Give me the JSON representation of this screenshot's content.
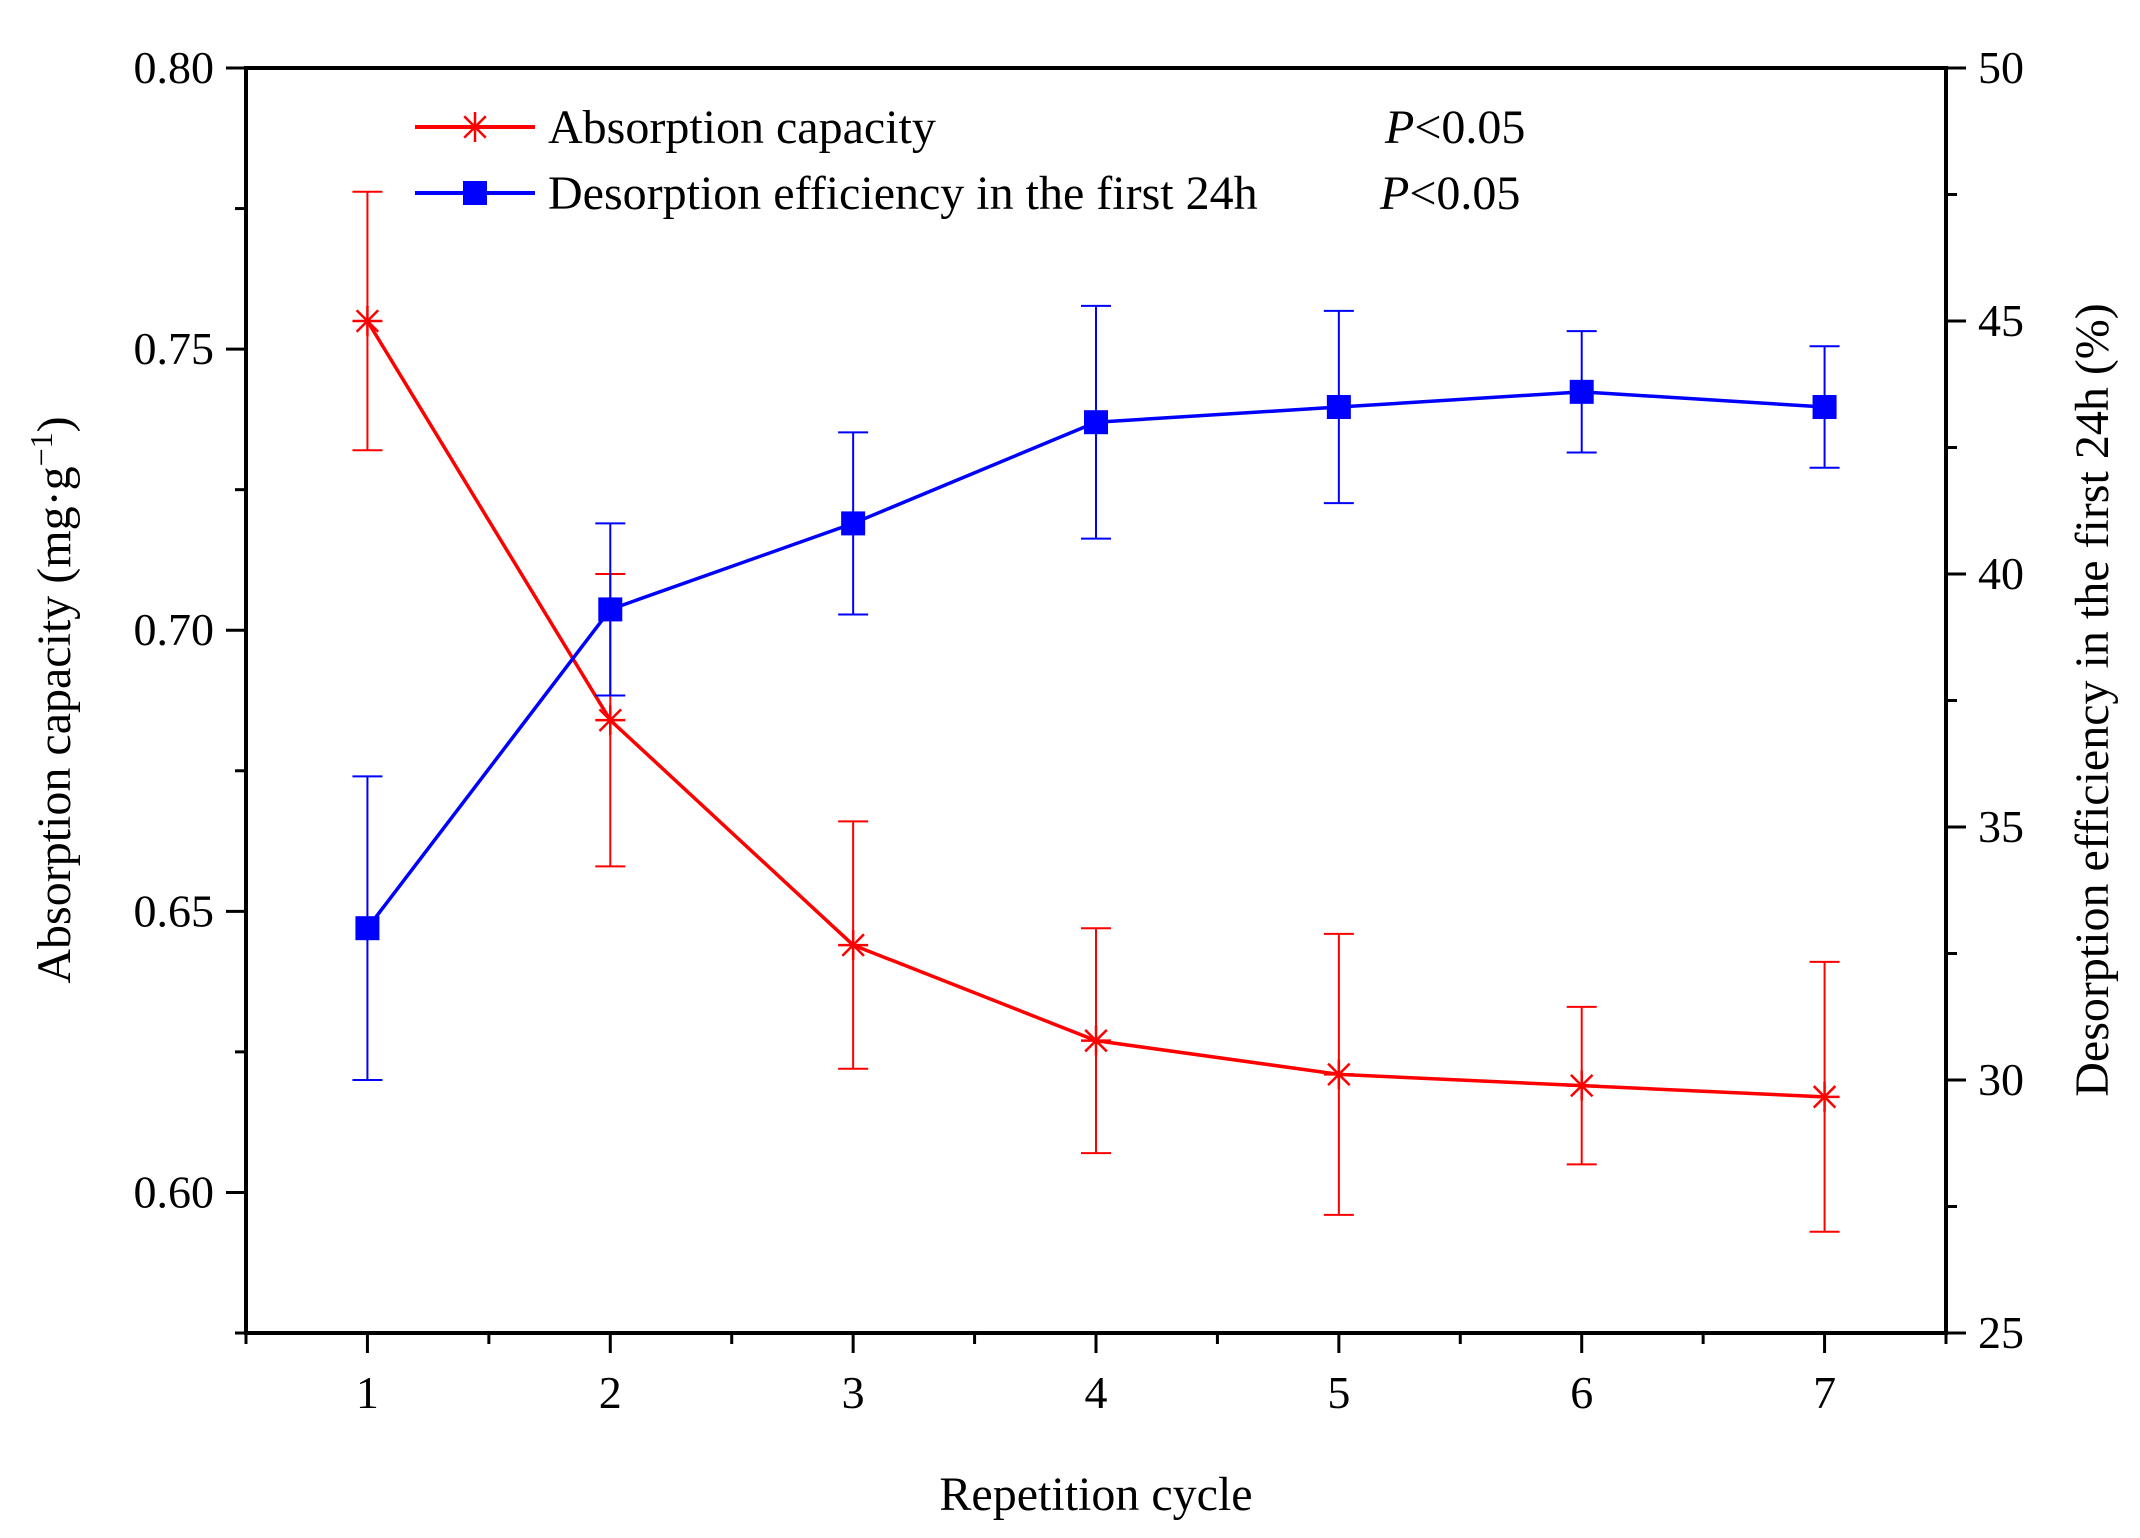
{
  "chart_data": {
    "type": "line",
    "x": [
      1,
      2,
      3,
      4,
      5,
      6,
      7
    ],
    "xlim": [
      0.5,
      7.5
    ],
    "xlabel": "Repetition cycle",
    "ylabel_left": "Absorption capacity (mg·g",
    "ylabel_left_sup": "−1",
    "ylabel_left_close": ")",
    "ylim_left": [
      0.575,
      0.8
    ],
    "yticks_left": [
      "0.60",
      "0.65",
      "0.70",
      "0.75",
      "0.80"
    ],
    "ylabel_right": "Desorption efficiency in the first 24h (%)",
    "ylim_right": [
      25,
      50
    ],
    "yticks_right": [
      "25",
      "30",
      "35",
      "40",
      "45",
      "50"
    ],
    "xticks": [
      "1",
      "2",
      "3",
      "4",
      "5",
      "6",
      "7"
    ],
    "series": [
      {
        "name": "Absorption capacity",
        "axis": "left",
        "color": "#ff0000",
        "marker": "asterisk",
        "values": [
          0.755,
          0.684,
          0.644,
          0.627,
          0.621,
          0.619,
          0.617
        ],
        "error": [
          0.023,
          0.026,
          0.022,
          0.02,
          0.025,
          0.014,
          0.024
        ],
        "p_prefix": "P",
        "p_value": "<0.05"
      },
      {
        "name": "Desorption efficiency in the first 24h",
        "axis": "right",
        "color": "#0000ff",
        "marker": "square",
        "values": [
          33.0,
          39.3,
          41.0,
          43.0,
          43.3,
          43.6,
          43.3
        ],
        "error": [
          3.0,
          1.7,
          1.8,
          2.3,
          1.9,
          1.2,
          1.2
        ],
        "p_prefix": "P",
        "p_value": "<0.05"
      }
    ],
    "legend_position": "top-left",
    "grid": false
  }
}
